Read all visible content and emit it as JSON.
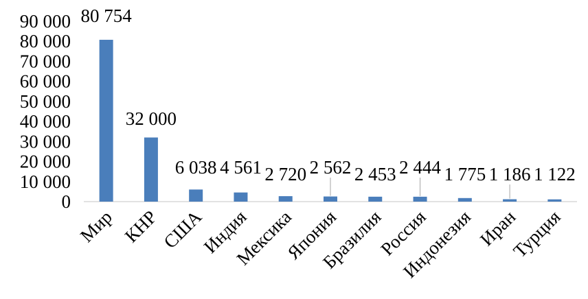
{
  "chart_data": {
    "type": "bar",
    "title": "",
    "xlabel": "",
    "ylabel": "",
    "categories": [
      "Мир",
      "КНР",
      "США",
      "Индия",
      "Мексика",
      "Япония",
      "Бразилия",
      "Россия",
      "Индонезия",
      "Иран",
      "Турция"
    ],
    "values": [
      80754,
      32000,
      6038,
      4561,
      2720,
      2562,
      2453,
      2444,
      1775,
      1186,
      1122
    ],
    "value_labels": [
      "80 754",
      "32 000",
      "6 038",
      "4 561",
      "2 720",
      "2 562",
      "2 453",
      "2 444",
      "1 775",
      "1 186",
      "1 122"
    ],
    "ylim": [
      0,
      90000
    ],
    "yticks": [
      0,
      10000,
      20000,
      30000,
      40000,
      50000,
      60000,
      70000,
      80000,
      90000
    ],
    "ytick_labels": [
      "0",
      "10 000",
      "20 000",
      "30 000",
      "40 000",
      "50 000",
      "60 000",
      "70 000",
      "80 000",
      "90 000"
    ],
    "grid": false,
    "legend": "none",
    "bar_color": "#4a7ebb"
  }
}
